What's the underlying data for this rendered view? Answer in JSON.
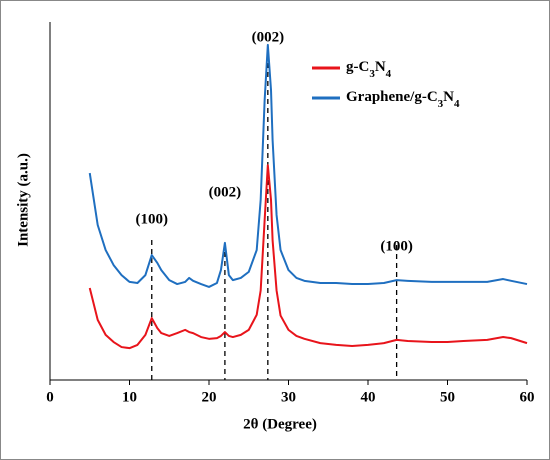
{
  "chart_data": {
    "type": "line",
    "xlabel": "2θ (Degree)",
    "ylabel": "Intensity (a.u.)",
    "xlim": [
      0,
      60
    ],
    "xticks": [
      0,
      10,
      20,
      30,
      40,
      50,
      60
    ],
    "ylim": [
      0,
      100
    ],
    "legend": "upper right",
    "x": [
      5,
      6,
      7,
      8,
      9,
      10,
      11,
      12,
      12.8,
      13.5,
      14,
      15,
      16,
      17,
      17.5,
      18,
      19,
      20,
      21,
      21.5,
      22,
      22.5,
      23,
      24,
      25,
      26,
      26.5,
      27,
      27.4,
      27.8,
      28,
      28.5,
      29,
      30,
      31,
      32,
      34,
      36,
      38,
      40,
      42,
      43.6,
      45,
      48,
      50,
      52,
      55,
      57,
      58,
      60
    ],
    "series": [
      {
        "name": "g-C3N4",
        "color": "#e8141b",
        "values": [
          25.7,
          16.8,
          12.6,
          10.6,
          9.2,
          8.9,
          9.8,
          12.6,
          17.3,
          14.5,
          13.1,
          12.3,
          13.1,
          14,
          13.4,
          13.1,
          12,
          11.5,
          11.7,
          12.3,
          13.4,
          12.3,
          12,
          12.6,
          14,
          18.2,
          25,
          44.7,
          60,
          50.3,
          39,
          25,
          18,
          14,
          12.3,
          11.5,
          10.3,
          9.8,
          9.5,
          9.8,
          10.3,
          11.2,
          10.9,
          10.6,
          10.6,
          10.9,
          11.2,
          12,
          11.7,
          10.3
        ]
      },
      {
        "name": "Graphene/g-C3N4",
        "color": "#1f6fc0",
        "values": [
          57.8,
          43.3,
          36.3,
          32.1,
          29.3,
          27.4,
          27.1,
          29.3,
          34.9,
          32.7,
          30.7,
          27.9,
          26.8,
          27.4,
          28.5,
          27.7,
          26.8,
          26,
          27.1,
          30.7,
          38.3,
          29.3,
          27.9,
          28.5,
          30.2,
          36.3,
          50.3,
          78.2,
          93.6,
          81,
          67,
          46.1,
          36.3,
          30.7,
          28.5,
          27.7,
          27.1,
          27.1,
          26.8,
          26.8,
          27.1,
          27.9,
          27.7,
          27.4,
          27.4,
          27.4,
          27.4,
          28.2,
          27.7,
          26.8
        ]
      }
    ],
    "annotations": [
      {
        "text": "(100)",
        "x": 12.8
      },
      {
        "text": "(002)",
        "x": 22
      },
      {
        "text": "(002)",
        "x": 27.4
      },
      {
        "text": "(100)",
        "x": 43.6
      }
    ]
  }
}
